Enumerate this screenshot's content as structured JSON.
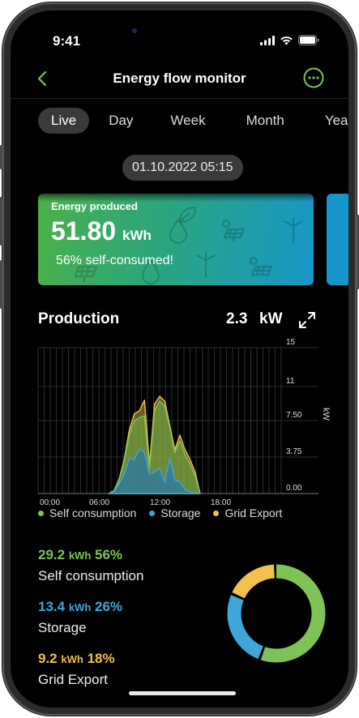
{
  "status": {
    "time": "9:41"
  },
  "nav": {
    "title": "Energy flow monitor",
    "back_icon": "chevron-left-icon",
    "more_icon": "more-horizontal-circle-icon"
  },
  "tabs": [
    {
      "label": "Live",
      "active": true
    },
    {
      "label": "Day",
      "active": false
    },
    {
      "label": "Week",
      "active": false
    },
    {
      "label": "Month",
      "active": false
    },
    {
      "label": "Yea",
      "active": false
    }
  ],
  "date": "01.10.2022 05:15",
  "card": {
    "title": "Energy produced",
    "value": "51.80",
    "unit": "kWh",
    "subtitle": "56% self-consumed!"
  },
  "production": {
    "title": "Production",
    "value": "2.3",
    "unit": "kW"
  },
  "chart_data": {
    "type": "area",
    "x_ticks": [
      "00:00",
      "06:00",
      "12:00",
      "18:00"
    ],
    "y_ticks": [
      "15",
      "11",
      "7.50",
      "3.75",
      "0.00"
    ],
    "y_tick_values": [
      15,
      11,
      7.5,
      3.75,
      0
    ],
    "ylabel": "kW",
    "xlim_hours": [
      0,
      24
    ],
    "ylim": [
      0,
      15
    ],
    "x_hours": [
      7,
      7.5,
      8,
      8.5,
      9,
      9.5,
      10,
      10.5,
      11,
      11.5,
      12,
      12.5,
      13,
      13.5,
      14,
      14.5,
      15,
      15.5,
      16
    ],
    "series": [
      {
        "name": "Grid Export",
        "color": "#f2c14e",
        "values": [
          0,
          0.3,
          1.5,
          3.5,
          6.5,
          8.2,
          8.5,
          9.6,
          3.0,
          9.2,
          10.0,
          9.5,
          7.0,
          4.5,
          6.0,
          4.5,
          3.5,
          2.2,
          0
        ]
      },
      {
        "name": "Self consumption",
        "color": "#7dc356",
        "values": [
          0,
          0.3,
          1.4,
          3.3,
          6.0,
          7.5,
          7.8,
          8.0,
          2.5,
          8.5,
          9.5,
          9.0,
          6.8,
          4.2,
          5.4,
          4.0,
          3.0,
          1.8,
          0
        ]
      },
      {
        "name": "Storage",
        "color": "#3fa6d9",
        "values": [
          0,
          0.2,
          1.0,
          2.0,
          3.6,
          3.5,
          4.6,
          4.2,
          2.0,
          2.2,
          2.6,
          1.2,
          3.6,
          1.4,
          1.2,
          0.4,
          0.2,
          0,
          0
        ]
      }
    ]
  },
  "legend": [
    {
      "label": "Self consumption",
      "color": "#7dc356"
    },
    {
      "label": "Storage",
      "color": "#3fa6d9"
    },
    {
      "label": "Grid Export",
      "color": "#f2c14e"
    }
  ],
  "stats": [
    {
      "value": "29.2",
      "unit": "kWh",
      "percent": "56%",
      "label": "Self consumption",
      "color": "#7dc356"
    },
    {
      "value": "13.4",
      "unit": "kWh",
      "percent": "26%",
      "label": "Storage",
      "color": "#3fa6d9"
    },
    {
      "value": "9.2",
      "unit": "kWh",
      "percent": "18%",
      "label": "Grid Export",
      "color": "#f2c14e"
    }
  ],
  "donut": [
    {
      "name": "Self consumption",
      "fraction": 0.56,
      "color": "#7dc356"
    },
    {
      "name": "Storage",
      "fraction": 0.26,
      "color": "#3fa6d9"
    },
    {
      "name": "Grid Export",
      "fraction": 0.18,
      "color": "#f2c14e"
    }
  ],
  "accent": "#7dc356"
}
